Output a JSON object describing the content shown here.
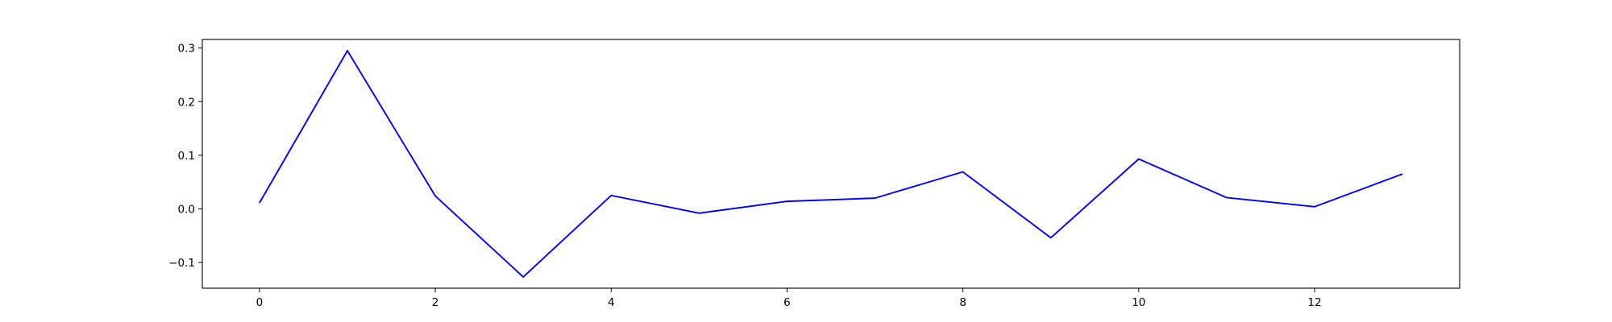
{
  "chart_data": {
    "type": "line",
    "title": "",
    "xlabel": "",
    "ylabel": "",
    "x": [
      0,
      1,
      2,
      3,
      4,
      5,
      6,
      7,
      8,
      9,
      10,
      11,
      12,
      13
    ],
    "series": [
      {
        "color": "#0000ff",
        "values": [
          0.011,
          0.295,
          0.024,
          -0.127,
          0.025,
          -0.008,
          0.014,
          0.02,
          0.069,
          -0.054,
          0.093,
          0.021,
          0.004,
          0.065
        ]
      }
    ],
    "xlim": [
      -0.65,
      13.65
    ],
    "ylim": [
      -0.148,
      0.316
    ],
    "xticks": [
      0,
      2,
      4,
      6,
      8,
      10,
      12
    ],
    "xtick_labels": [
      "0",
      "2",
      "4",
      "6",
      "8",
      "10",
      "12"
    ],
    "yticks": [
      -0.1,
      0.0,
      0.1,
      0.2,
      0.3
    ],
    "ytick_labels": [
      "−0.1",
      "0.0",
      "0.1",
      "0.2",
      "0.3"
    ],
    "grid": false,
    "legend": "none"
  }
}
